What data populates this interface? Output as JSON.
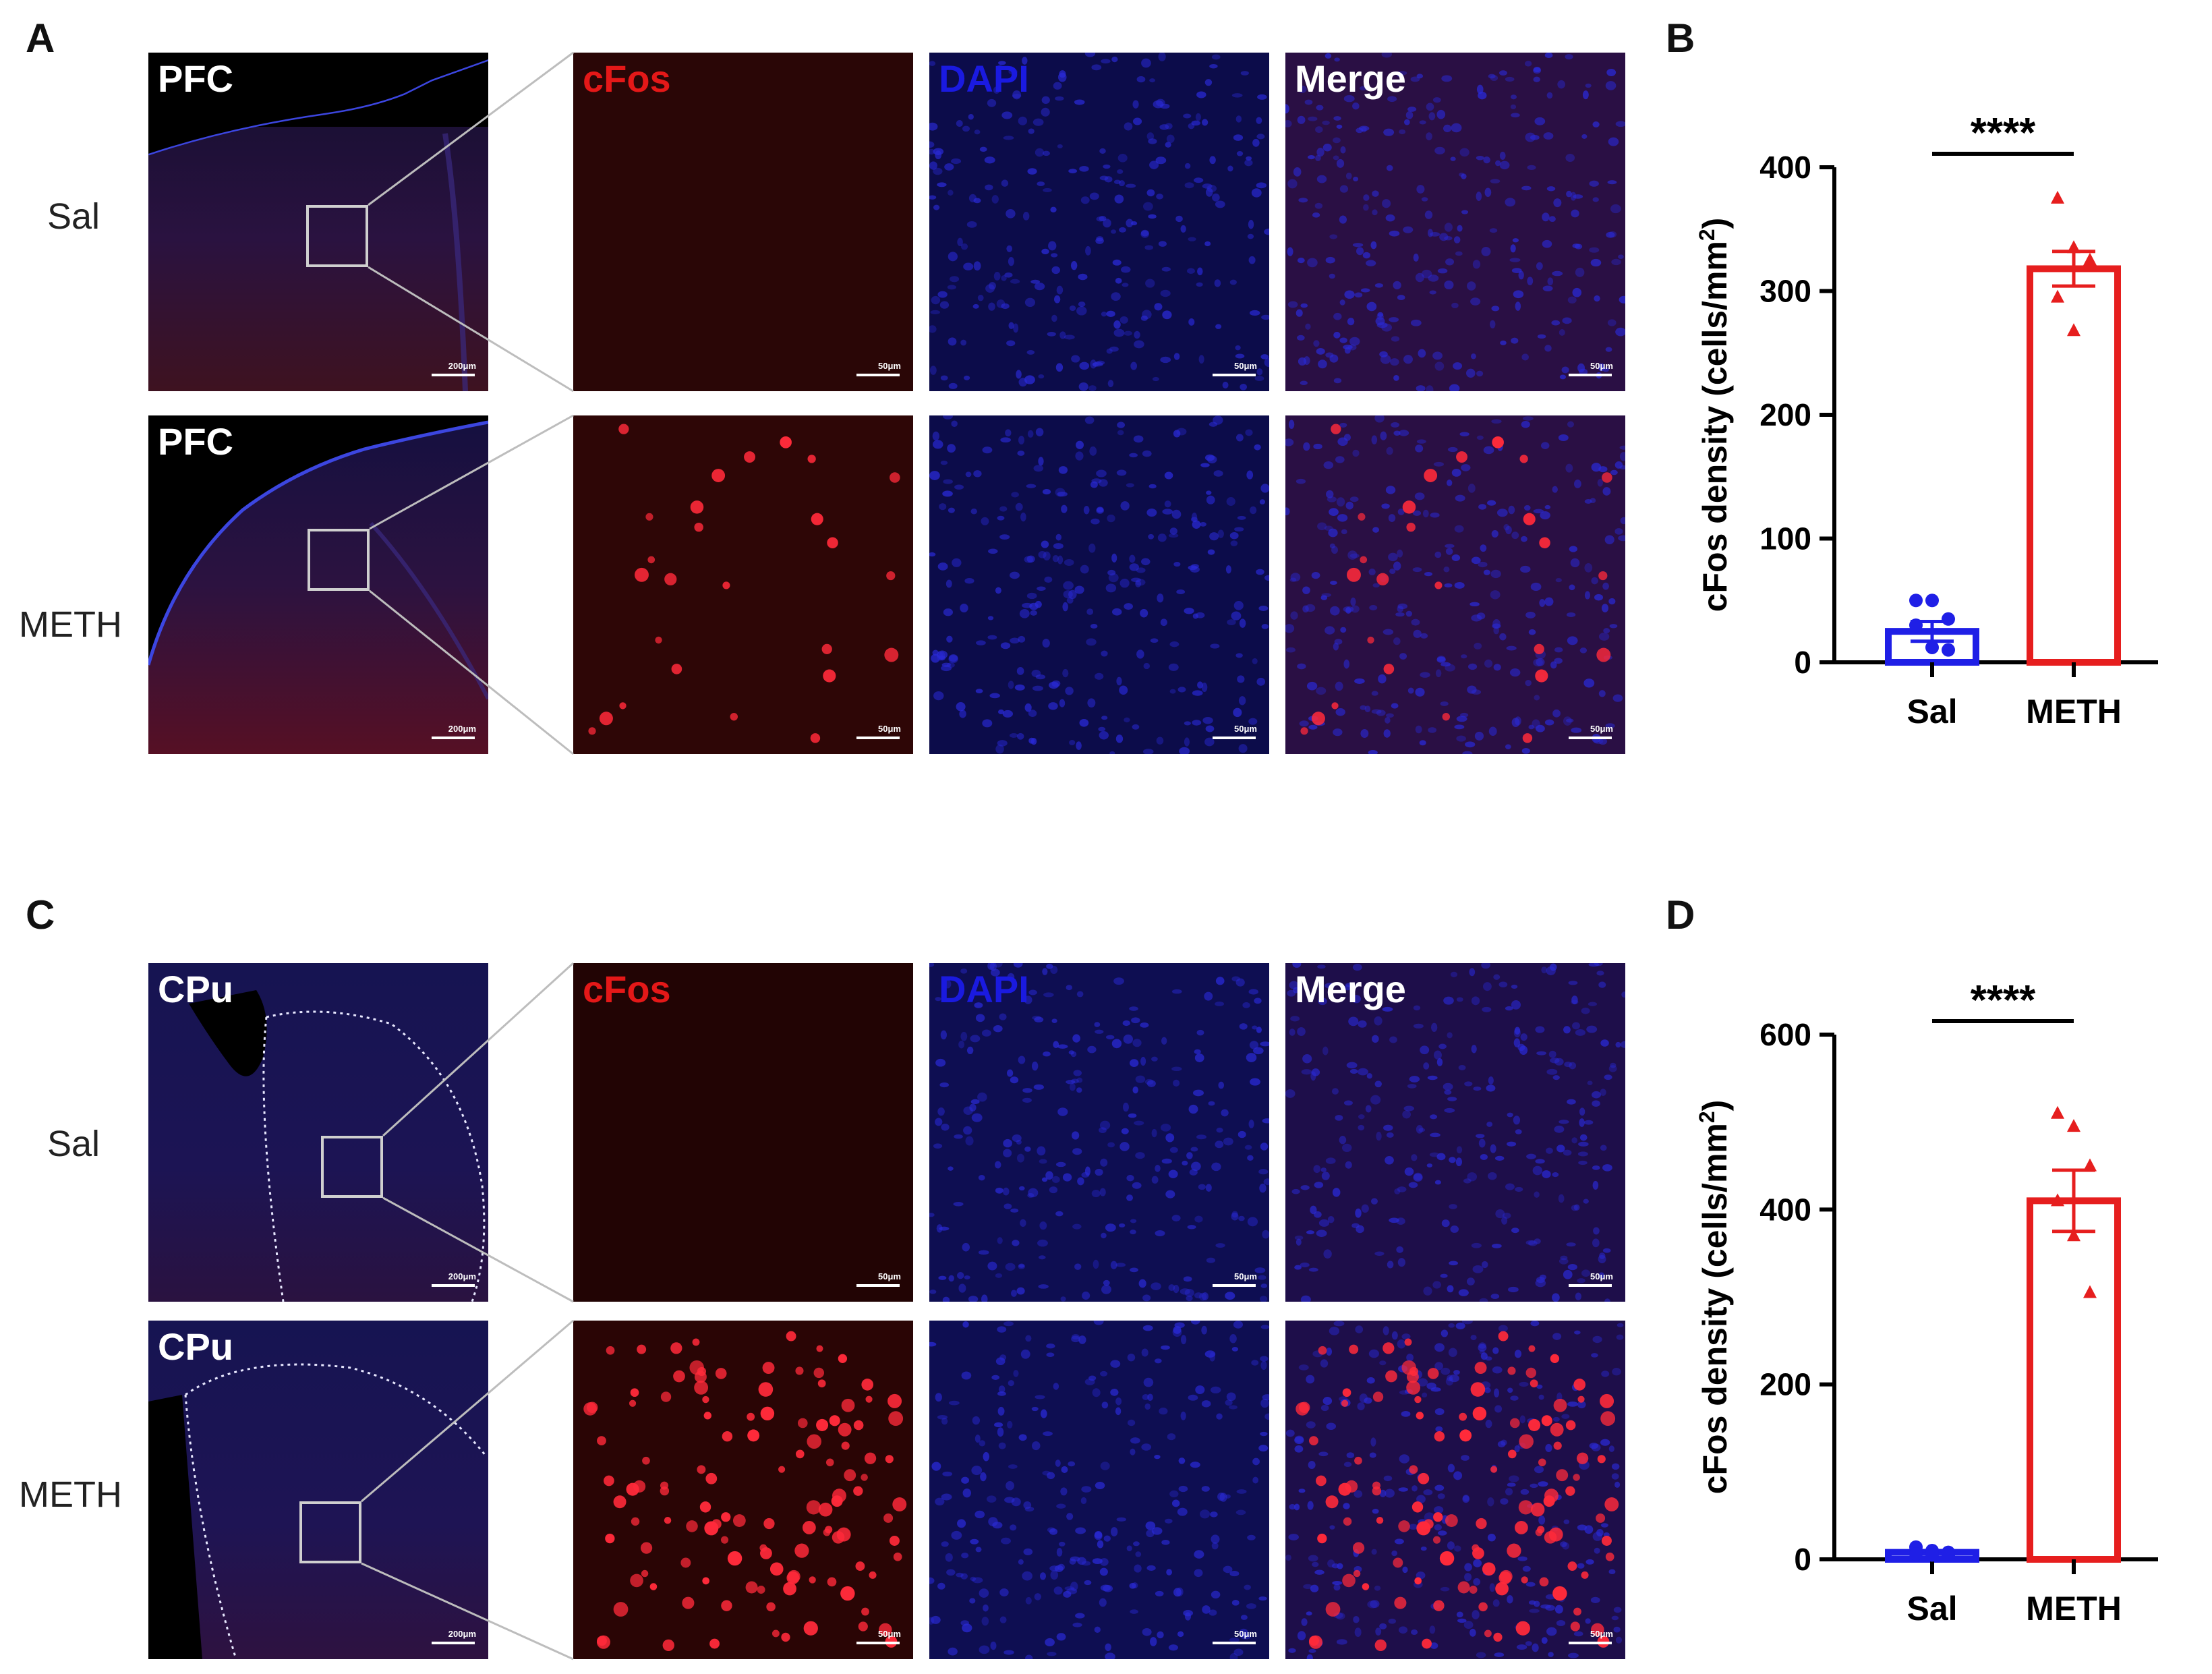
{
  "panels": {
    "A": {
      "letter": "A",
      "rows": [
        {
          "group": "Sal",
          "region": "PFC",
          "scales": [
            "200μm",
            "50μm",
            "50μm",
            "50μm"
          ]
        },
        {
          "group": "METH",
          "region": "PFC",
          "scales": [
            "200μm",
            "50μm",
            "50μm",
            "50μm"
          ]
        }
      ],
      "channels": [
        "cFos",
        "DAPI",
        "Merge"
      ]
    },
    "C": {
      "letter": "C",
      "rows": [
        {
          "group": "Sal",
          "region": "CPu",
          "scales": [
            "200μm",
            "50μm",
            "50μm",
            "50μm"
          ]
        },
        {
          "group": "METH",
          "region": "CPu",
          "scales": [
            "200μm",
            "50μm",
            "50μm",
            "50μm"
          ]
        }
      ],
      "channels": [
        "cFos",
        "DAPI",
        "Merge"
      ]
    }
  },
  "chart_data": [
    {
      "panel": "B",
      "type": "bar",
      "categories": [
        "Sal",
        "METH"
      ],
      "values": [
        25,
        318
      ],
      "sem": [
        8,
        14
      ],
      "points": [
        [
          50,
          50,
          35,
          30,
          12,
          10
        ],
        [
          375,
          335,
          325,
          295,
          268
        ]
      ],
      "colors": [
        "#1f1fe6",
        "#e61e1e"
      ],
      "ylabel": "cFos density (cells/mm",
      "ylabel_sup": "2",
      "ylabel_end": ")",
      "ylim": [
        0,
        400
      ],
      "yticks": [
        0,
        100,
        200,
        300,
        400
      ],
      "significance": "****"
    },
    {
      "panel": "D",
      "type": "bar",
      "categories": [
        "Sal",
        "METH"
      ],
      "values": [
        8,
        410
      ],
      "sem": [
        2,
        35
      ],
      "points": [
        [
          14,
          10,
          8,
          6,
          5,
          4
        ],
        [
          510,
          495,
          450,
          410,
          370,
          305
        ]
      ],
      "colors": [
        "#1f1fe6",
        "#e61e1e"
      ],
      "ylabel": "cFos density (cells/mm",
      "ylabel_sup": "2",
      "ylabel_end": ")",
      "ylim": [
        0,
        600
      ],
      "yticks": [
        0,
        200,
        400,
        600
      ],
      "significance": "****"
    }
  ]
}
